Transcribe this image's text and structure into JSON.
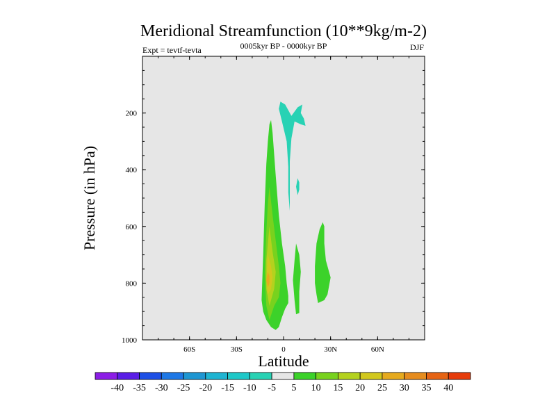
{
  "chart_data": {
    "type": "contour",
    "title": "Meridional Streamfunction (10**9kg/m-2)",
    "subtitle": "0005kyr BP - 0000kyr BP",
    "left_label": "Expt = tevtf-tevta",
    "right_label": "DJF",
    "xlabel": "Latitude",
    "ylabel": "Pressure (in hPa)",
    "xlim": [
      -90,
      90
    ],
    "ylim": [
      0,
      1000
    ],
    "y_inverted": true,
    "x_ticks": [
      {
        "value": -60,
        "label": "60S"
      },
      {
        "value": -30,
        "label": "30S"
      },
      {
        "value": 0,
        "label": "0"
      },
      {
        "value": 30,
        "label": "30N"
      },
      {
        "value": 60,
        "label": "60N"
      }
    ],
    "y_ticks": [
      {
        "value": 200,
        "label": "200"
      },
      {
        "value": 400,
        "label": "400"
      },
      {
        "value": 600,
        "label": "600"
      },
      {
        "value": 800,
        "label": "800"
      },
      {
        "value": 1000,
        "label": "1000"
      }
    ],
    "background_color": "#e6e6e6",
    "colorbar": {
      "levels": [
        "-40",
        "-35",
        "-30",
        "-25",
        "-20",
        "-15",
        "-10",
        "-5",
        "5",
        "10",
        "15",
        "20",
        "25",
        "30",
        "35",
        "40"
      ],
      "colors": [
        "#8c1ee6",
        "#5a1ee6",
        "#1e50e6",
        "#1e78e6",
        "#1e96d2",
        "#1eb4d2",
        "#1ec8c8",
        "#28d2b4",
        "#e6e6e6",
        "#3cd22a",
        "#78d21e",
        "#b4d21e",
        "#d2c81e",
        "#e6aa1e",
        "#e68c1e",
        "#e66414",
        "#e63c0a"
      ]
    },
    "regions": [
      {
        "name": "negative-cell-upper",
        "value_range": [
          -10,
          -5
        ],
        "color": "#28d2b4",
        "outline": [
          [
            -2,
            160
          ],
          [
            1,
            170
          ],
          [
            5,
            210
          ],
          [
            9,
            180
          ],
          [
            12,
            170
          ],
          [
            11,
            200
          ],
          [
            13,
            220
          ],
          [
            14,
            245
          ],
          [
            11,
            240
          ],
          [
            7,
            230
          ],
          [
            5,
            290
          ],
          [
            4,
            370
          ],
          [
            4,
            450
          ],
          [
            4,
            545
          ],
          [
            3,
            480
          ],
          [
            3,
            390
          ],
          [
            2,
            300
          ],
          [
            -1,
            230
          ],
          [
            -3,
            185
          ]
        ]
      },
      {
        "name": "negative-cell-small",
        "value_range": [
          -10,
          -5
        ],
        "color": "#28d2b4",
        "outline": [
          [
            9,
            430
          ],
          [
            10,
            445
          ],
          [
            10,
            470
          ],
          [
            9,
            490
          ],
          [
            8,
            460
          ]
        ]
      },
      {
        "name": "positive-cell-main",
        "value_range": [
          5,
          10
        ],
        "color": "#3cd22a",
        "outline": [
          [
            -8,
            225
          ],
          [
            -7,
            270
          ],
          [
            -5,
            420
          ],
          [
            -3,
            560
          ],
          [
            -1,
            660
          ],
          [
            1,
            740
          ],
          [
            2,
            800
          ],
          [
            3,
            845
          ],
          [
            3,
            870
          ],
          [
            1,
            890
          ],
          [
            -1,
            920
          ],
          [
            -3,
            955
          ],
          [
            -5,
            965
          ],
          [
            -8,
            955
          ],
          [
            -11,
            930
          ],
          [
            -13,
            900
          ],
          [
            -14,
            860
          ],
          [
            -13,
            700
          ],
          [
            -12,
            520
          ],
          [
            -11,
            380
          ],
          [
            -10,
            300
          ],
          [
            -9,
            240
          ]
        ]
      },
      {
        "name": "positive-cell-main-inner",
        "value_range": [
          10,
          15
        ],
        "color": "#78d21e",
        "outline": [
          [
            -9,
            460
          ],
          [
            -7,
            560
          ],
          [
            -5,
            650
          ],
          [
            -3,
            740
          ],
          [
            -2,
            800
          ],
          [
            -3,
            850
          ],
          [
            -6,
            880
          ],
          [
            -9,
            930
          ],
          [
            -11,
            880
          ],
          [
            -12,
            760
          ],
          [
            -11,
            620
          ],
          [
            -10,
            520
          ]
        ]
      },
      {
        "name": "positive-cell-main-core",
        "value_range": [
          15,
          20
        ],
        "color": "#b4d21e",
        "outline": [
          [
            -9,
            600
          ],
          [
            -7,
            690
          ],
          [
            -5,
            760
          ],
          [
            -6,
            820
          ],
          [
            -9,
            880
          ],
          [
            -11,
            820
          ],
          [
            -11,
            720
          ]
        ]
      },
      {
        "name": "positive-cell-main-max",
        "value_range": [
          20,
          25
        ],
        "color": "#d2c81e",
        "outline": [
          [
            -10,
            700
          ],
          [
            -8,
            740
          ],
          [
            -7,
            780
          ],
          [
            -8,
            820
          ],
          [
            -10,
            840
          ],
          [
            -11,
            790
          ]
        ]
      },
      {
        "name": "positive-cell-main-peak",
        "value_range": [
          25,
          30
        ],
        "color": "#e6aa1e",
        "outline": [
          [
            -10,
            760
          ],
          [
            -9,
            775
          ],
          [
            -9,
            800
          ],
          [
            -10,
            815
          ],
          [
            -11,
            790
          ]
        ]
      },
      {
        "name": "positive-cell-mid",
        "value_range": [
          5,
          10
        ],
        "color": "#3cd22a",
        "outline": [
          [
            8,
            660
          ],
          [
            10,
            700
          ],
          [
            11,
            760
          ],
          [
            10,
            830
          ],
          [
            10,
            905
          ],
          [
            8,
            910
          ],
          [
            7,
            860
          ],
          [
            6,
            790
          ],
          [
            7,
            720
          ]
        ]
      },
      {
        "name": "positive-cell-north",
        "value_range": [
          5,
          10
        ],
        "color": "#3cd22a",
        "outline": [
          [
            25,
            585
          ],
          [
            26,
            600
          ],
          [
            26,
            660
          ],
          [
            27,
            720
          ],
          [
            30,
            780
          ],
          [
            28,
            840
          ],
          [
            26,
            860
          ],
          [
            22,
            870
          ],
          [
            21,
            840
          ],
          [
            20,
            800
          ],
          [
            20,
            740
          ],
          [
            21,
            660
          ],
          [
            23,
            610
          ]
        ]
      }
    ]
  }
}
